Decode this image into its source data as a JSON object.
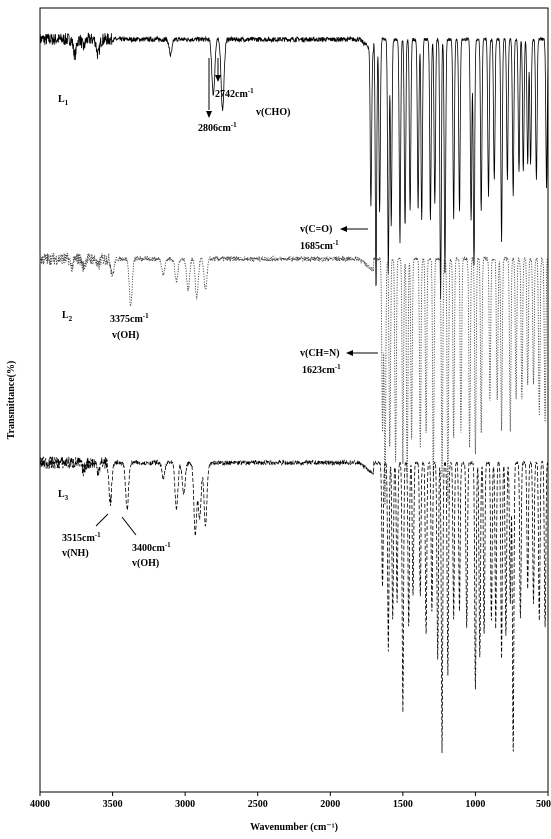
{
  "chart_data": {
    "type": "line",
    "title": "",
    "xlabel": "Wavenumber (cm⁻¹)",
    "ylabel": "Transmittance(%)",
    "xlim": [
      4000,
      500
    ],
    "x_ticks": [
      "4000",
      "3500",
      "3000",
      "2500",
      "2000",
      "1500",
      "1000",
      "500"
    ],
    "grid": false,
    "series": [
      {
        "name": "L1",
        "label_main": "L",
        "label_sub": "1",
        "style": "solid",
        "color": "#000000",
        "baseline": 96,
        "floor": 62,
        "peaks": [
          [
            3760,
            94
          ],
          [
            3700,
            95
          ],
          [
            3600,
            94
          ],
          [
            3100,
            94
          ],
          [
            2806,
            89
          ],
          [
            2742,
            87
          ],
          [
            1720,
            76
          ],
          [
            1685,
            64
          ],
          [
            1660,
            74
          ],
          [
            1600,
            66
          ],
          [
            1580,
            72
          ],
          [
            1520,
            70
          ],
          [
            1485,
            72
          ],
          [
            1450,
            74
          ],
          [
            1395,
            74
          ],
          [
            1370,
            73
          ],
          [
            1310,
            73
          ],
          [
            1280,
            75
          ],
          [
            1240,
            63
          ],
          [
            1210,
            66
          ],
          [
            1150,
            73
          ],
          [
            1110,
            74
          ],
          [
            1030,
            73
          ],
          [
            1010,
            67
          ],
          [
            960,
            74
          ],
          [
            910,
            76
          ],
          [
            870,
            78
          ],
          [
            820,
            70
          ],
          [
            780,
            78
          ],
          [
            740,
            76
          ],
          [
            700,
            79
          ],
          [
            670,
            79
          ],
          [
            640,
            80
          ],
          [
            620,
            80
          ],
          [
            580,
            78
          ],
          [
            510,
            77
          ]
        ],
        "annotations": [
          {
            "main": "2742cm",
            "sup": "-1"
          },
          {
            "main": "v(CHO)",
            "sup": ""
          },
          {
            "main": "2806cm",
            "sup": "-1"
          },
          {
            "main": "v(C=O)",
            "sup": ""
          },
          {
            "main": "1685cm",
            "sup": "-1"
          }
        ]
      },
      {
        "name": "L2",
        "label_main": "L",
        "label_sub": "2",
        "style": "dotted",
        "color": "#444444",
        "baseline": 68,
        "floor": 34,
        "peaks": [
          [
            3780,
            67
          ],
          [
            3700,
            67
          ],
          [
            3600,
            67
          ],
          [
            3500,
            66
          ],
          [
            3375,
            62
          ],
          [
            3150,
            66
          ],
          [
            3060,
            65
          ],
          [
            2980,
            64
          ],
          [
            2920,
            63
          ],
          [
            2860,
            64
          ],
          [
            1640,
            46
          ],
          [
            1623,
            36
          ],
          [
            1590,
            44
          ],
          [
            1550,
            42
          ],
          [
            1500,
            42
          ],
          [
            1470,
            40
          ],
          [
            1440,
            45
          ],
          [
            1380,
            44
          ],
          [
            1340,
            46
          ],
          [
            1290,
            40
          ],
          [
            1230,
            40
          ],
          [
            1190,
            37
          ],
          [
            1150,
            45
          ],
          [
            1100,
            46
          ],
          [
            1040,
            44
          ],
          [
            1000,
            43
          ],
          [
            960,
            46
          ],
          [
            900,
            50
          ],
          [
            850,
            50
          ],
          [
            820,
            46
          ],
          [
            760,
            46
          ],
          [
            720,
            50
          ],
          [
            680,
            50
          ],
          [
            640,
            52
          ],
          [
            600,
            52
          ],
          [
            560,
            48
          ],
          [
            520,
            47
          ]
        ],
        "annotations": [
          {
            "main": "3375cm",
            "sup": "-1"
          },
          {
            "main": "v(OH)",
            "sup": ""
          },
          {
            "main": "v(CH=N)",
            "sup": ""
          },
          {
            "main": "1623cm",
            "sup": "-1"
          }
        ]
      },
      {
        "name": "L3",
        "label_main": "L",
        "label_sub": "3",
        "style": "dashed",
        "color": "#000000",
        "baseline": 42,
        "floor": 2,
        "peaks": [
          [
            3700,
            41
          ],
          [
            3600,
            41
          ],
          [
            3515,
            37
          ],
          [
            3400,
            36
          ],
          [
            3150,
            40
          ],
          [
            3060,
            36
          ],
          [
            3010,
            38
          ],
          [
            2930,
            33
          ],
          [
            2900,
            35
          ],
          [
            2860,
            34
          ],
          [
            1640,
            26
          ],
          [
            1600,
            18
          ],
          [
            1570,
            22
          ],
          [
            1540,
            24
          ],
          [
            1500,
            10
          ],
          [
            1460,
            21
          ],
          [
            1430,
            25
          ],
          [
            1380,
            25
          ],
          [
            1340,
            20
          ],
          [
            1300,
            23
          ],
          [
            1260,
            17
          ],
          [
            1230,
            5
          ],
          [
            1190,
            15
          ],
          [
            1150,
            22
          ],
          [
            1110,
            23
          ],
          [
            1060,
            21
          ],
          [
            1000,
            13
          ],
          [
            970,
            17
          ],
          [
            940,
            20
          ],
          [
            890,
            22
          ],
          [
            860,
            21
          ],
          [
            820,
            17
          ],
          [
            790,
            20
          ],
          [
            760,
            24
          ],
          [
            740,
            5
          ],
          [
            690,
            22
          ],
          [
            640,
            26
          ],
          [
            600,
            24
          ],
          [
            560,
            22
          ],
          [
            520,
            21
          ]
        ],
        "annotations": [
          {
            "main": "3515cm",
            "sup": "-1"
          },
          {
            "main": "v(NH)",
            "sup": ""
          },
          {
            "main": "3400cm",
            "sup": "-1"
          },
          {
            "main": "v(OH)",
            "sup": ""
          }
        ]
      }
    ]
  }
}
